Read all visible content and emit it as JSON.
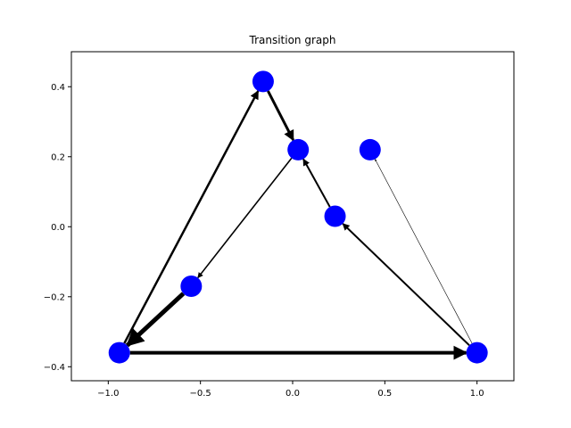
{
  "chart_data": {
    "type": "scatter",
    "title": "Transition graph",
    "xlabel": "",
    "ylabel": "",
    "xlim": [
      -1.2,
      1.2
    ],
    "ylim": [
      -0.44,
      0.5
    ],
    "xticks": [
      -1.0,
      -0.5,
      0.0,
      0.5,
      1.0
    ],
    "xtick_labels": [
      "−1.0",
      "−0.5",
      "0.0",
      "0.5",
      "1.0"
    ],
    "yticks": [
      -0.4,
      -0.2,
      0.0,
      0.2,
      0.4
    ],
    "ytick_labels": [
      "−0.4",
      "−0.2",
      "0.0",
      "0.2",
      "0.4"
    ],
    "grid": false,
    "node_color": "#0000ff",
    "edge_color": "#000000",
    "nodes": [
      {
        "id": "n0",
        "x": -0.94,
        "y": -0.36
      },
      {
        "id": "n1",
        "x": -0.16,
        "y": 0.415
      },
      {
        "id": "n2",
        "x": 0.03,
        "y": 0.22
      },
      {
        "id": "n3",
        "x": 0.42,
        "y": 0.22
      },
      {
        "id": "n4",
        "x": 0.23,
        "y": 0.03
      },
      {
        "id": "n5",
        "x": -0.55,
        "y": -0.17
      },
      {
        "id": "n6",
        "x": 1.0,
        "y": -0.36
      }
    ],
    "edges": [
      {
        "from": "n0",
        "to": "n1",
        "weight": 2.5
      },
      {
        "from": "n1",
        "to": "n2",
        "weight": 3.0
      },
      {
        "from": "n2",
        "to": "n5",
        "weight": 1.6
      },
      {
        "from": "n5",
        "to": "n0",
        "weight": 5.0
      },
      {
        "from": "n0",
        "to": "n6",
        "weight": 4.0
      },
      {
        "from": "n6",
        "to": "n4",
        "weight": 2.0
      },
      {
        "from": "n4",
        "to": "n2",
        "weight": 2.0
      },
      {
        "from": "n6",
        "to": "n3",
        "weight": 0.6
      }
    ]
  }
}
